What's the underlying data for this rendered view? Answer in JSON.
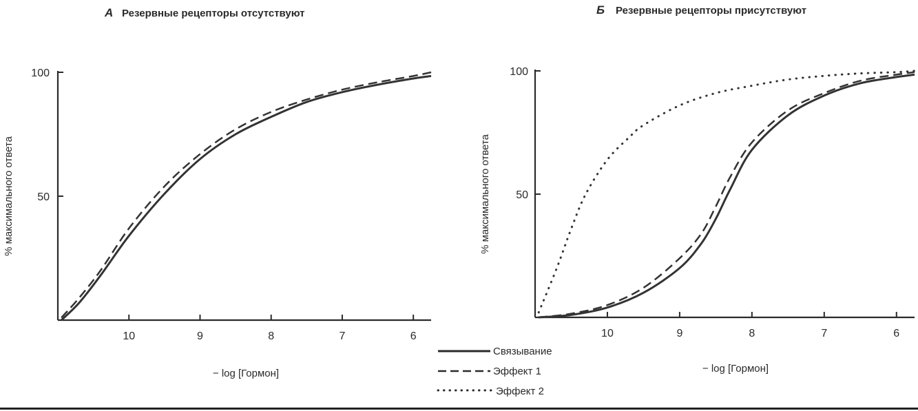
{
  "chart_data": [
    {
      "type": "line",
      "panel_letter": "А",
      "title": "Резервные рецепторы отсутствуют",
      "xlabel": "− log [Гормон]",
      "ylabel": "% максимального ответа",
      "xlim": [
        11,
        5.75
      ],
      "ylim": [
        0,
        100
      ],
      "x_reversed": true,
      "x_ticks": [
        10,
        9,
        8,
        7,
        6
      ],
      "y_ticks": [
        50,
        100
      ],
      "grid": false,
      "series": [
        {
          "name": "Связывание",
          "style": "solid",
          "x": [
            10.95,
            10.7,
            10.4,
            10.0,
            9.5,
            9.0,
            8.5,
            8.0,
            7.5,
            7.0,
            6.5,
            6.0,
            5.75
          ],
          "y": [
            0,
            7,
            18,
            34,
            51,
            65,
            75,
            82,
            88,
            92,
            95,
            97.5,
            98.5
          ]
        },
        {
          "name": "Эффект 1",
          "style": "dashed",
          "x": [
            10.95,
            10.7,
            10.4,
            10.0,
            9.5,
            9.0,
            8.5,
            8.0,
            7.5,
            7.0,
            6.5,
            6.0,
            5.75
          ],
          "y": [
            1,
            9,
            20,
            37,
            54,
            67,
            77,
            84,
            89,
            93,
            96,
            98.5,
            100
          ]
        }
      ]
    },
    {
      "type": "line",
      "panel_letter": "Б",
      "title": "Резервные рецепторы присутствуют",
      "xlabel": "− log [Гормон]",
      "ylabel": "% максимального ответа",
      "xlim": [
        11,
        5.75
      ],
      "ylim": [
        0,
        100
      ],
      "x_reversed": true,
      "x_ticks": [
        10,
        9,
        8,
        7,
        6
      ],
      "y_ticks": [
        50,
        100
      ],
      "grid": false,
      "series": [
        {
          "name": "Связывание",
          "style": "solid",
          "x": [
            10.95,
            10.5,
            10.0,
            9.5,
            9.0,
            8.7,
            8.5,
            8.3,
            8.0,
            7.5,
            7.0,
            6.5,
            6.0,
            5.75
          ],
          "y": [
            0,
            1,
            4,
            10,
            20,
            30,
            40,
            52,
            68,
            82,
            90,
            95,
            97.5,
            98.5
          ]
        },
        {
          "name": "Эффект 1",
          "style": "dashed",
          "x": [
            10.95,
            10.5,
            10.0,
            9.5,
            9.0,
            8.7,
            8.5,
            8.3,
            8.0,
            7.5,
            7.0,
            6.5,
            6.0,
            5.75
          ],
          "y": [
            0,
            1.5,
            5,
            12,
            24,
            34,
            45,
            57,
            71,
            84,
            91,
            96,
            98.5,
            99.5
          ]
        },
        {
          "name": "Эффект 2",
          "style": "dotted",
          "x": [
            10.95,
            10.7,
            10.5,
            10.3,
            10.0,
            9.7,
            9.5,
            9.0,
            8.5,
            8.0,
            7.5,
            7.0,
            6.5,
            6.0,
            5.75
          ],
          "y": [
            2,
            20,
            36,
            50,
            64,
            73,
            78,
            86,
            91,
            94,
            96.5,
            98,
            99,
            99.5,
            100
          ]
        }
      ]
    }
  ],
  "legend": {
    "placement": "bottom-center",
    "items": [
      {
        "label": "Связывание",
        "style": "solid"
      },
      {
        "label": "Эффект 1",
        "style": "dashed"
      },
      {
        "label": "Эффект 2",
        "style": "dotted"
      }
    ]
  },
  "colors": {
    "ink": "#2a2a2a",
    "curve": "#333333",
    "background": "#ffffff"
  }
}
